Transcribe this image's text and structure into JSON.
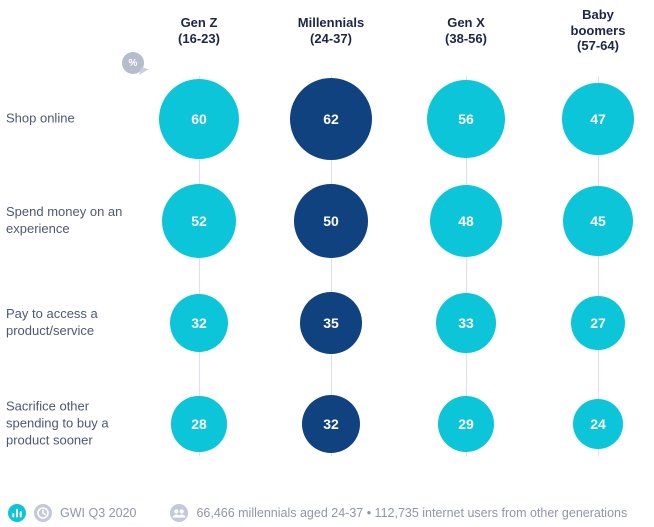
{
  "colors": {
    "bubble_default": "#0CC5D8",
    "bubble_highlight": "#114280",
    "connector_line": "#DCE0E9",
    "header_text": "#1E2547",
    "row_label_text": "#4D5873",
    "footer_text": "#8E96AA",
    "percent_badge": "#B5BCCE"
  },
  "percent_badge": {
    "label": "%"
  },
  "chart_data": {
    "type": "bubble",
    "title": "",
    "unit": "%",
    "columns": [
      "Gen Z\n(16-23)",
      "Millennials\n(24-37)",
      "Gen X\n(38-56)",
      "Baby\nboomers\n(57-64)"
    ],
    "highlight_column_index": 1,
    "rows": [
      "Shop online",
      "Spend money on an\nexperience",
      "Pay to access a\nproduct/service",
      "Sacrifice other\nspending to buy a\nproduct sooner"
    ],
    "values": [
      [
        60,
        62,
        56,
        47
      ],
      [
        52,
        50,
        48,
        45
      ],
      [
        32,
        35,
        33,
        27
      ],
      [
        28,
        32,
        29,
        24
      ]
    ],
    "legend_position": "none",
    "grid": "vertical-connector-lines"
  },
  "footer": {
    "source": "GWI Q3 2020",
    "sample": "66,466 millennials aged 24-37 • 112,735 internet users from other generations",
    "icons": [
      "bar-chart-icon",
      "clock-icon",
      "audience-icon"
    ]
  }
}
